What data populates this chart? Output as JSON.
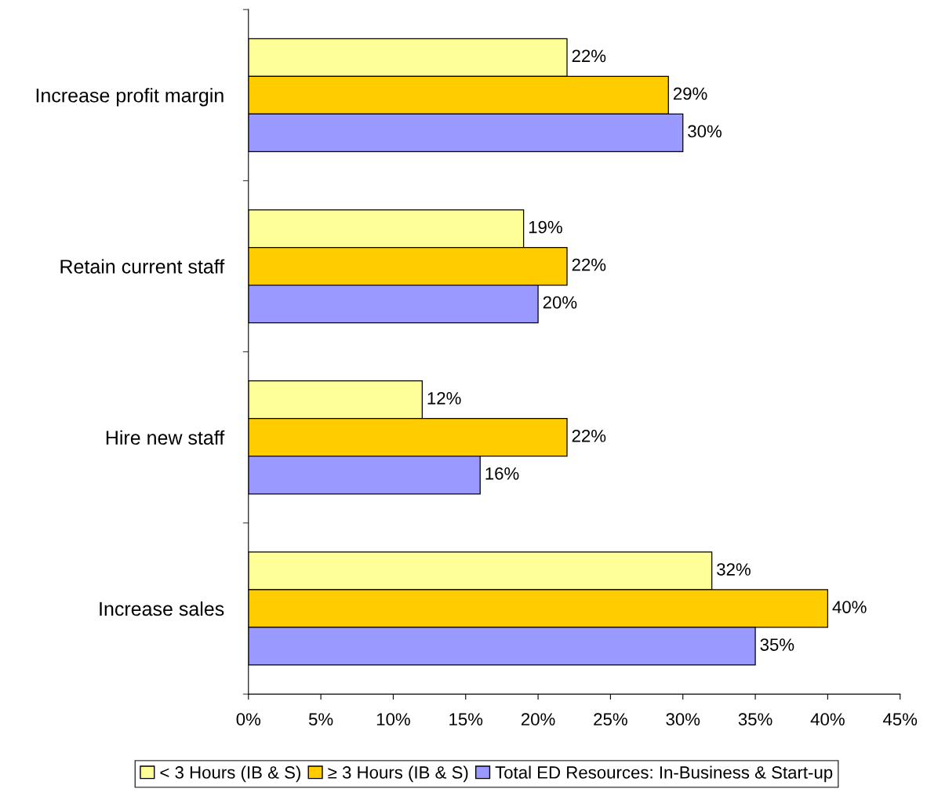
{
  "chart_data": {
    "type": "bar",
    "orientation": "horizontal",
    "categories": [
      "Increase profit margin",
      "Retain current staff",
      "Hire new staff",
      "Increase sales"
    ],
    "series": [
      {
        "name": "< 3 Hours (IB & S)",
        "color": "#ffff99",
        "values": [
          22,
          19,
          12,
          32
        ],
        "value_labels": [
          "22%",
          "19%",
          "12%",
          "32%"
        ]
      },
      {
        "name": "≥ 3 Hours (IB & S)",
        "color": "#ffcc00",
        "values": [
          29,
          22,
          22,
          40
        ],
        "value_labels": [
          "29%",
          "22%",
          "22%",
          "40%"
        ]
      },
      {
        "name": "Total ED Resources: In-Business & Start-up",
        "color": "#9999ff",
        "values": [
          30,
          20,
          16,
          35
        ],
        "value_labels": [
          "30%",
          "20%",
          "16%",
          "35%"
        ]
      }
    ],
    "xlim": [
      0,
      45
    ],
    "xticks": [
      {
        "value": 0,
        "label": "0%"
      },
      {
        "value": 5,
        "label": "5%"
      },
      {
        "value": 10,
        "label": "10%"
      },
      {
        "value": 15,
        "label": "15%"
      },
      {
        "value": 20,
        "label": "20%"
      },
      {
        "value": 25,
        "label": "25%"
      },
      {
        "value": 30,
        "label": "30%"
      },
      {
        "value": 35,
        "label": "35%"
      },
      {
        "value": 40,
        "label": "40%"
      },
      {
        "value": 45,
        "label": "45%"
      }
    ],
    "grid": false,
    "legend": "bottom"
  }
}
